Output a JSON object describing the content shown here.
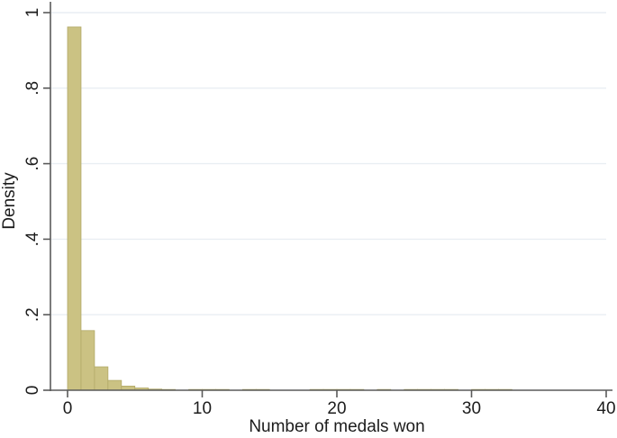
{
  "figure": {
    "background": "#ffffff"
  },
  "colors": {
    "bar_fill": "#cbc283",
    "bar_border": "#b2a967",
    "gridline": "#e9eef3",
    "axis": "#5a5a5a",
    "text": "#1c1c1c",
    "background": "#ffffff"
  },
  "chart_data": {
    "type": "bar",
    "chart_kind": "histogram",
    "title": "",
    "xlabel": "Number of medals won",
    "ylabel": "Density",
    "xlim": [
      -1.3,
      40.4
    ],
    "ylim": [
      0,
      1
    ],
    "grid": "horizontal-only",
    "legend": "none",
    "x_tick_values": [
      0,
      10,
      20,
      30,
      40
    ],
    "x_tick_labels": [
      "0",
      "10",
      "20",
      "30",
      "40"
    ],
    "y_tick_values": [
      0,
      0.2,
      0.4,
      0.6,
      0.8,
      1
    ],
    "y_tick_labels": [
      "0",
      ".2",
      ".4",
      ".6",
      ".8",
      "1"
    ],
    "bin_width": 1,
    "bins": [
      {
        "x": 0,
        "density": 0.962
      },
      {
        "x": 1,
        "density": 0.158
      },
      {
        "x": 2,
        "density": 0.062
      },
      {
        "x": 3,
        "density": 0.026
      },
      {
        "x": 4,
        "density": 0.011
      },
      {
        "x": 5,
        "density": 0.006
      },
      {
        "x": 6,
        "density": 0.003
      },
      {
        "x": 7,
        "density": 0.002
      },
      {
        "x": 9,
        "density": 0.002
      },
      {
        "x": 10,
        "density": 0.002
      },
      {
        "x": 11,
        "density": 0.002
      },
      {
        "x": 13,
        "density": 0.002
      },
      {
        "x": 14,
        "density": 0.002
      },
      {
        "x": 18,
        "density": 0.002
      },
      {
        "x": 19,
        "density": 0.002
      },
      {
        "x": 20,
        "density": 0.002
      },
      {
        "x": 21,
        "density": 0.002
      },
      {
        "x": 23,
        "density": 0.002
      },
      {
        "x": 25,
        "density": 0.002
      },
      {
        "x": 26,
        "density": 0.002
      },
      {
        "x": 27,
        "density": 0.002
      },
      {
        "x": 28,
        "density": 0.002
      },
      {
        "x": 30,
        "density": 0.002
      },
      {
        "x": 31,
        "density": 0.002
      },
      {
        "x": 32,
        "density": 0.002
      }
    ]
  }
}
